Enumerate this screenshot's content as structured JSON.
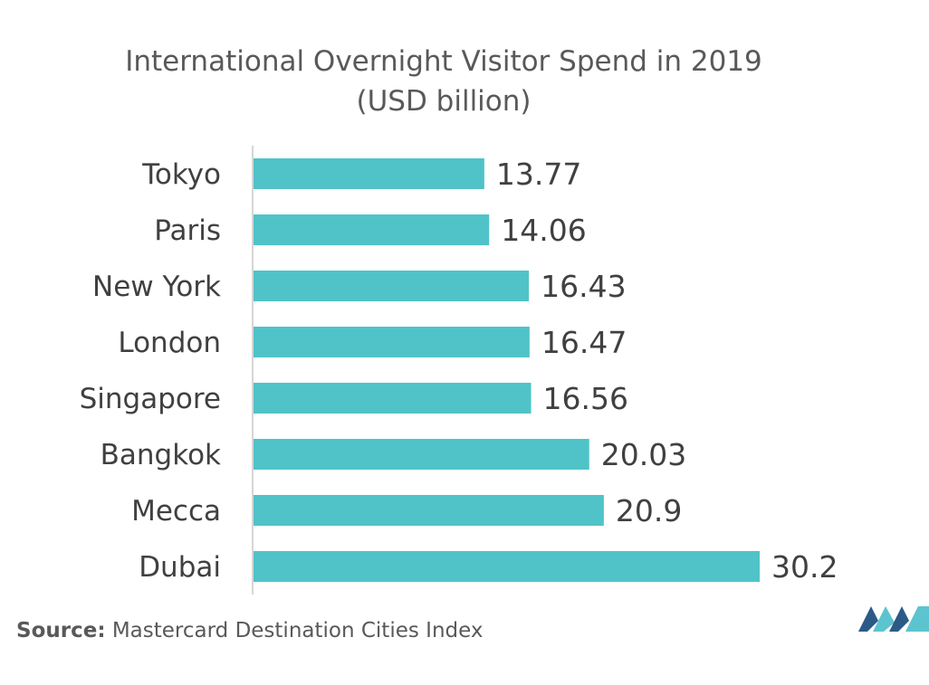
{
  "chart_data": {
    "type": "bar",
    "orientation": "horizontal",
    "title": "International Overnight Visitor Spend in 2019",
    "subtitle": "(USD billion)",
    "categories": [
      "Tokyo",
      "Paris",
      "New York",
      "London",
      "Singapore",
      "Bangkok",
      "Mecca",
      "Dubai"
    ],
    "values": [
      13.77,
      14.06,
      16.43,
      16.47,
      16.56,
      20.03,
      20.9,
      30.2
    ],
    "value_labels": [
      "13.77",
      "14.06",
      "16.43",
      "16.47",
      "16.56",
      "20.03",
      "20.9",
      "30.2"
    ],
    "xlabel": "",
    "ylabel": "",
    "xlim": [
      0,
      30.2
    ],
    "grid": false,
    "legend": "none",
    "bar_color": "#4fc3c8",
    "axis_color": "#c8c8c8",
    "text_color": "#404040"
  },
  "source": {
    "label": "Source:",
    "text": "Mastercard Destination Cities Index"
  },
  "logo": {
    "icon": "mordor-intelligence-logo-icon",
    "colors": [
      "#2c5a87",
      "#5cc4cf"
    ]
  }
}
